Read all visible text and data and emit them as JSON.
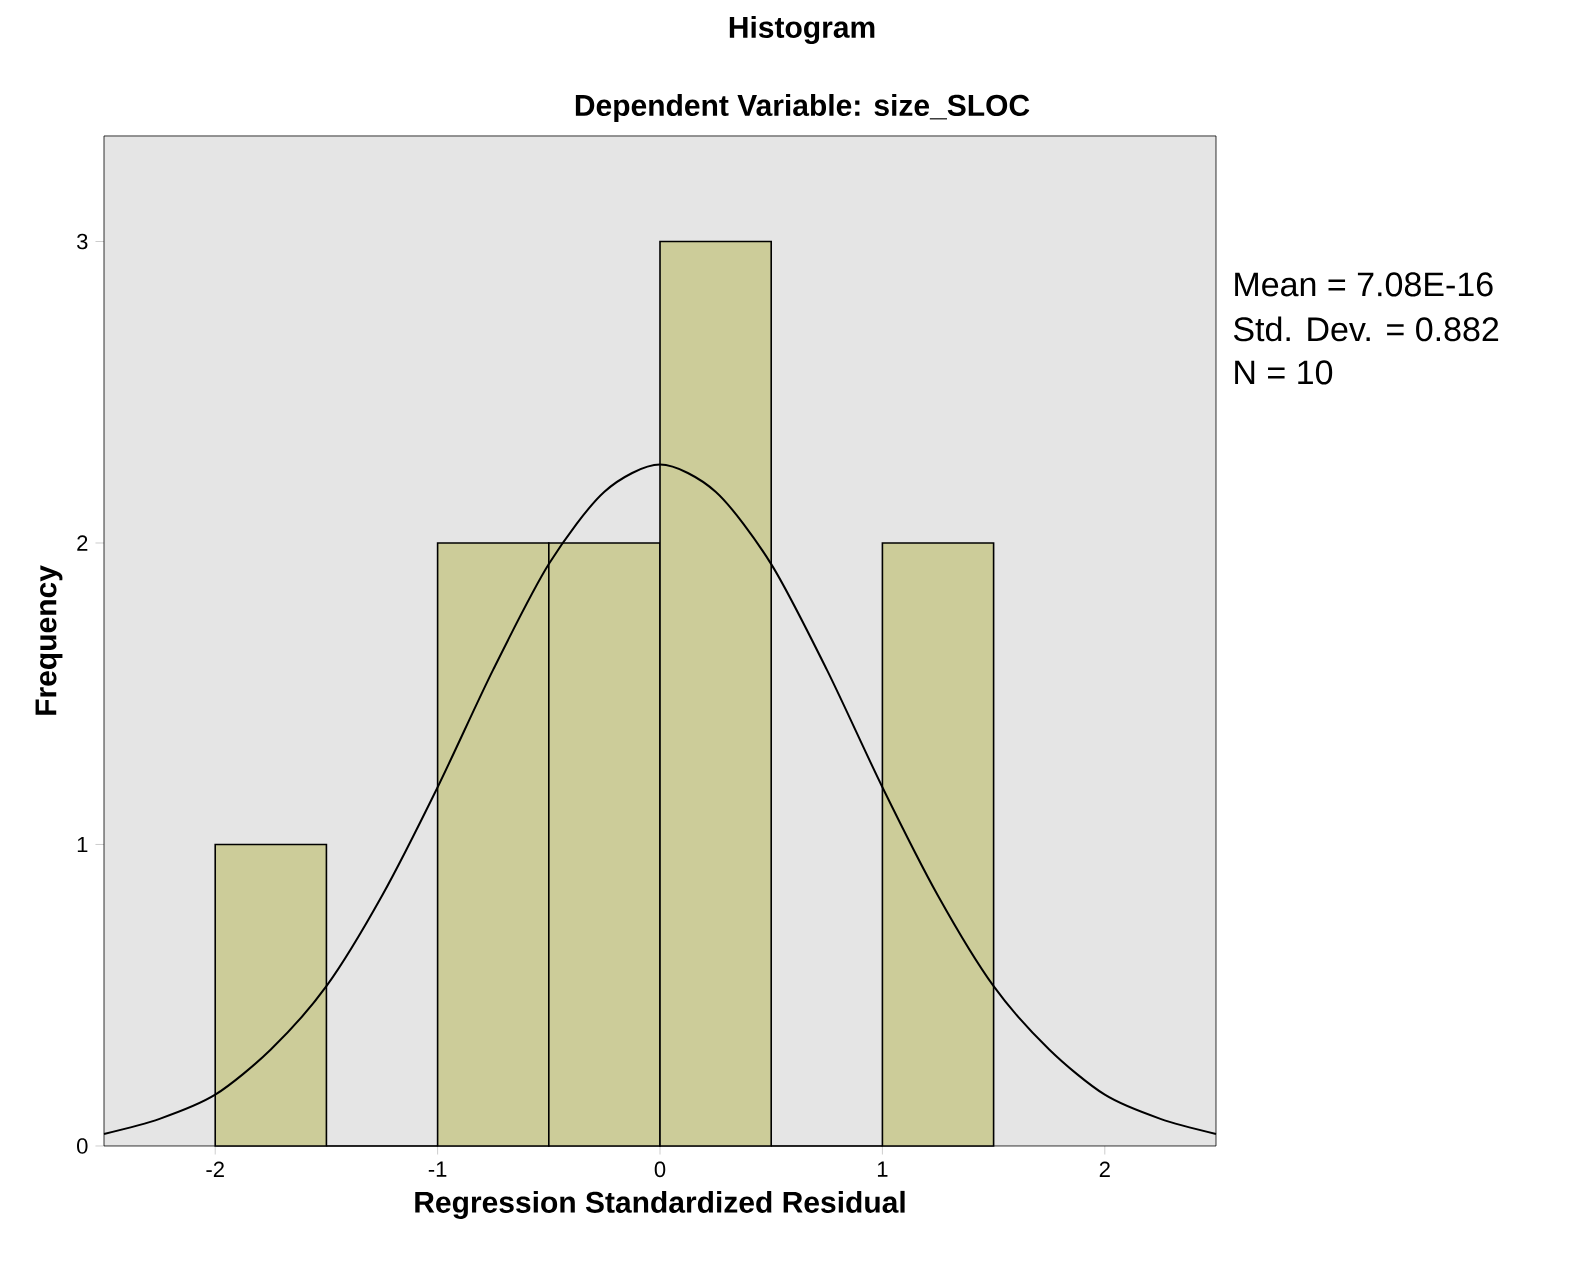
{
  "chart_data": {
    "type": "histogram",
    "title": "Histogram",
    "subtitle": "Dependent Variable: size_SLOC",
    "xlabel": "Regression Standardized Residual",
    "ylabel": "Frequency",
    "bins": [
      -2,
      -1.5,
      -1,
      -0.5,
      0,
      0.5,
      1,
      1.5
    ],
    "values": [
      1,
      0,
      2,
      2,
      3,
      0,
      2
    ],
    "color": "#cccc99",
    "series": [
      {
        "type": "line",
        "color": "#000000",
        "x": [
          -2.5,
          -2.25,
          -2,
          -1.75,
          -1.5,
          -1.25,
          -1,
          -0.75,
          -0.5,
          -0.25,
          0,
          0.25,
          0.5,
          0.75,
          1,
          1.25,
          1.5,
          1.75,
          2,
          2.25,
          2.5
        ],
        "values": [
          0.04,
          0.09,
          0.17,
          0.32,
          0.53,
          0.83,
          1.19,
          1.58,
          1.93,
          2.17,
          2.26,
          2.17,
          1.93,
          1.58,
          1.19,
          0.83,
          0.53,
          0.32,
          0.17,
          0.09,
          0.04
        ]
      }
    ],
    "xlim": [
      -2.5,
      2.5
    ],
    "ylim": [
      0,
      3.35
    ],
    "xticks": [
      -2,
      -1,
      0,
      1,
      2
    ],
    "yticks": [
      0,
      1,
      2,
      3
    ],
    "annotations": [
      "Mean = 7.08E-16",
      "Std. Dev. = 0.882",
      "N = 10"
    ]
  }
}
